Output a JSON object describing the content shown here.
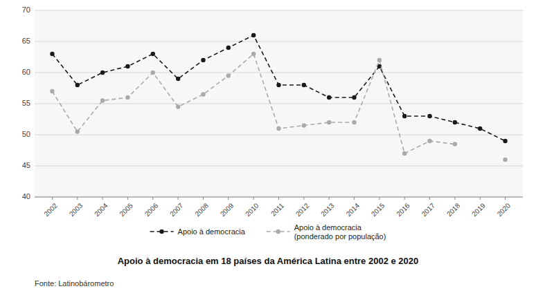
{
  "chart_data": {
    "type": "line",
    "title": "Apoio à democracia em 18 países da América Latina entre 2002 e 2020",
    "annotations": [
      "Fonte: Latinobárometro"
    ],
    "x": [
      2002,
      2003,
      2004,
      2005,
      2006,
      2007,
      2008,
      2009,
      2010,
      2011,
      2012,
      2013,
      2014,
      2015,
      2016,
      2017,
      2018,
      2019,
      2020
    ],
    "xlim": [
      2001.3,
      2020.7
    ],
    "xticks": [
      2002,
      2003,
      2004,
      2005,
      2006,
      2007,
      2008,
      2009,
      2010,
      2011,
      2012,
      2013,
      2014,
      2015,
      2016,
      2017,
      2018,
      2019,
      2020
    ],
    "ylim": [
      40,
      70
    ],
    "yticks": [
      40,
      45,
      50,
      55,
      60,
      65,
      70
    ],
    "grid": true,
    "legend": "bottom",
    "series": [
      {
        "name": "Apoio à democracia",
        "color": "#1a1a1a",
        "marker": "circle",
        "line_style": "dashed",
        "values": [
          63,
          58,
          60,
          61,
          63,
          59,
          62,
          64,
          66,
          58,
          58,
          56,
          56,
          61,
          53,
          53,
          52,
          51,
          49
        ]
      },
      {
        "name": "Apoio à democracia\n(ponderado por população)",
        "color": "#aaaaaa",
        "marker": "circle",
        "line_style": "dashed",
        "values": [
          57,
          50.5,
          55.5,
          56,
          60,
          54.5,
          56.5,
          59.5,
          63,
          51,
          51.5,
          52,
          52,
          62,
          47,
          49,
          48.5,
          null,
          46
        ]
      }
    ]
  }
}
